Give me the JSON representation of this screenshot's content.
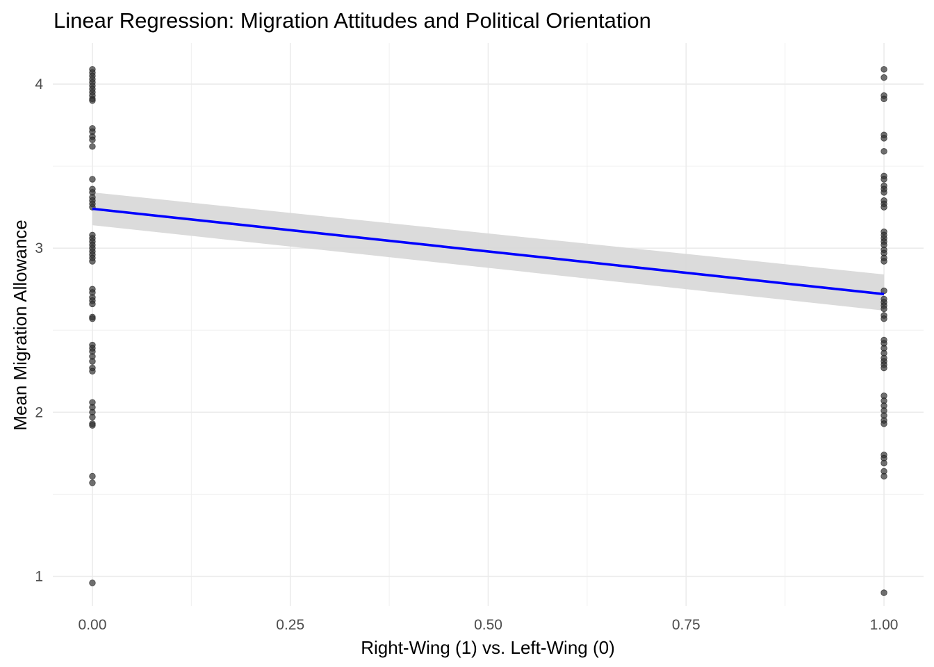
{
  "chart_data": {
    "type": "scatter",
    "title": "Linear Regression: Migration Attitudes and Political Orientation",
    "xlabel": "Right-Wing (1) vs. Left-Wing (0)",
    "ylabel": "Mean Migration Allowance",
    "xlim": [
      -0.05,
      1.05
    ],
    "ylim": [
      0.82,
      4.25
    ],
    "x_ticks": [
      0,
      0.25,
      0.5,
      0.75,
      1
    ],
    "x_tick_labels": [
      "0.00",
      "0.25",
      "0.50",
      "0.75",
      "1.00"
    ],
    "y_ticks": [
      1,
      2,
      3,
      4
    ],
    "y_tick_labels": [
      "1",
      "2",
      "3",
      "4"
    ],
    "grid": true,
    "legend": "none",
    "points": {
      "color": "#333333",
      "groups": [
        {
          "x": 0,
          "y": [
            4.09,
            4.07,
            4.05,
            4.03,
            4.01,
            3.99,
            3.97,
            3.95,
            3.93,
            3.91,
            3.9,
            3.73,
            3.71,
            3.68,
            3.66,
            3.62,
            3.42,
            3.36,
            3.34,
            3.31,
            3.29,
            3.27,
            3.25,
            3.08,
            3.06,
            3.04,
            3.02,
            3.0,
            2.98,
            2.96,
            2.94,
            2.92,
            2.75,
            2.73,
            2.7,
            2.68,
            2.66,
            2.58,
            2.57,
            2.41,
            2.39,
            2.37,
            2.34,
            2.31,
            2.27,
            2.25,
            2.06,
            2.03,
            2.0,
            1.97,
            1.93,
            1.92,
            1.61,
            1.57,
            0.96
          ]
        },
        {
          "x": 1,
          "y": [
            4.09,
            4.04,
            3.93,
            3.91,
            3.69,
            3.67,
            3.59,
            3.44,
            3.42,
            3.38,
            3.36,
            3.34,
            3.29,
            3.27,
            3.25,
            3.1,
            3.08,
            3.06,
            3.04,
            3.02,
            2.99,
            2.97,
            2.94,
            2.92,
            2.74,
            2.69,
            2.67,
            2.65,
            2.63,
            2.59,
            2.57,
            2.44,
            2.42,
            2.39,
            2.36,
            2.33,
            2.31,
            2.29,
            2.27,
            2.1,
            2.07,
            2.04,
            2.01,
            1.98,
            1.95,
            1.93,
            1.74,
            1.72,
            1.69,
            1.64,
            1.61,
            0.9
          ]
        }
      ]
    },
    "regression": {
      "color": "#0000ff",
      "band_color": "#d9d9d9",
      "x": [
        0,
        1
      ],
      "fit": [
        3.24,
        2.72
      ],
      "ci_lower": [
        3.14,
        2.62
      ],
      "ci_upper": [
        3.34,
        2.84
      ]
    }
  }
}
